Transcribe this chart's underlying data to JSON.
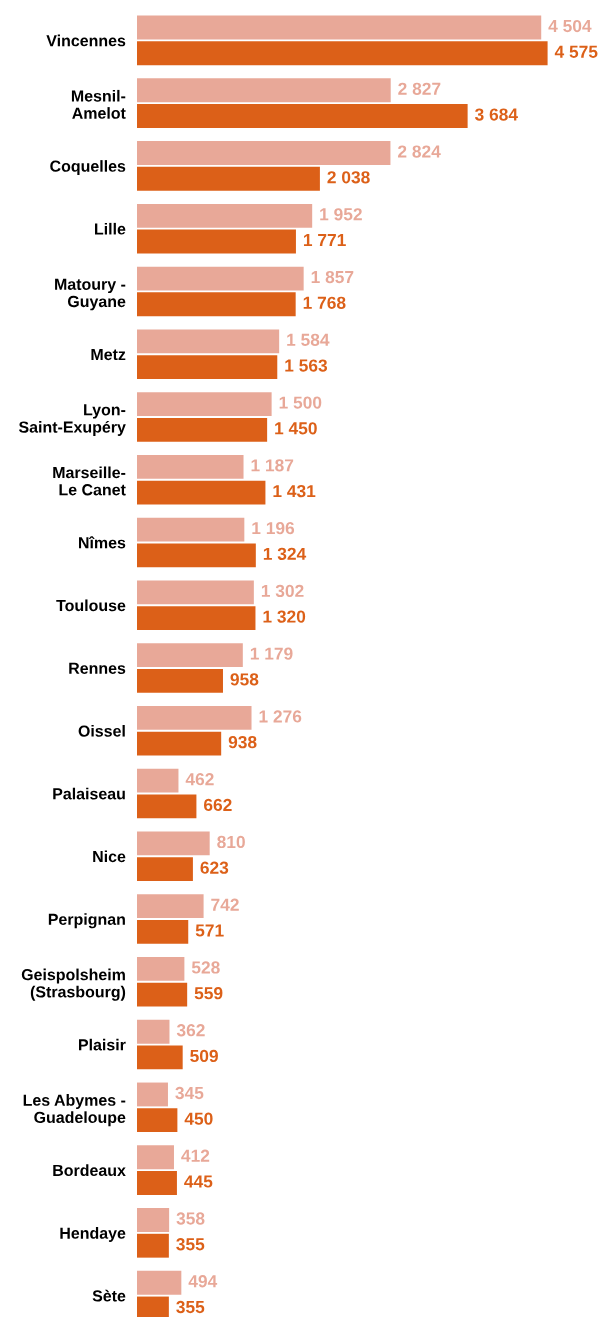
{
  "chart_data": {
    "type": "bar",
    "orientation": "horizontal",
    "categories": [
      "Vincennes",
      "Mesnil-\nAmelot",
      "Coquelles",
      "Lille",
      "Matoury -\nGuyane",
      "Metz",
      "Lyon-\nSaint-Exupéry",
      "Marseille-\nLe Canet",
      "Nîmes",
      "Toulouse",
      "Rennes",
      "Oissel",
      "Palaiseau",
      "Nice",
      "Perpignan",
      "Geispolsheim\n(Strasbourg)",
      "Plaisir",
      "Les Abymes -\nGuadeloupe",
      "Bordeaux",
      "Hendaye",
      "Sète"
    ],
    "series": [
      {
        "color": "#e8a898",
        "values": [
          4504,
          2827,
          2824,
          1952,
          1857,
          1584,
          1500,
          1187,
          1196,
          1302,
          1179,
          1276,
          462,
          810,
          742,
          528,
          362,
          345,
          412,
          358,
          494
        ],
        "value_labels": [
          "4 504",
          "2 827",
          "2 824",
          "1 952",
          "1 857",
          "1 584",
          "1 500",
          "1 187",
          "1 196",
          "1 302",
          "1 179",
          "1 276",
          "462",
          "810",
          "742",
          "528",
          "362",
          "345",
          "412",
          "358",
          "494"
        ]
      },
      {
        "color": "#dc6018",
        "values": [
          4575,
          3684,
          2038,
          1771,
          1768,
          1563,
          1450,
          1431,
          1324,
          1320,
          958,
          938,
          662,
          623,
          571,
          559,
          509,
          450,
          445,
          355,
          355
        ],
        "value_labels": [
          "4 575",
          "3 684",
          "2 038",
          "1 771",
          "1 768",
          "1 563",
          "1 450",
          "1 431",
          "1 324",
          "1 320",
          "958",
          "938",
          "662",
          "623",
          "571",
          "559",
          "509",
          "450",
          "445",
          "355",
          "355"
        ]
      }
    ],
    "tick_labels": "y"
  }
}
